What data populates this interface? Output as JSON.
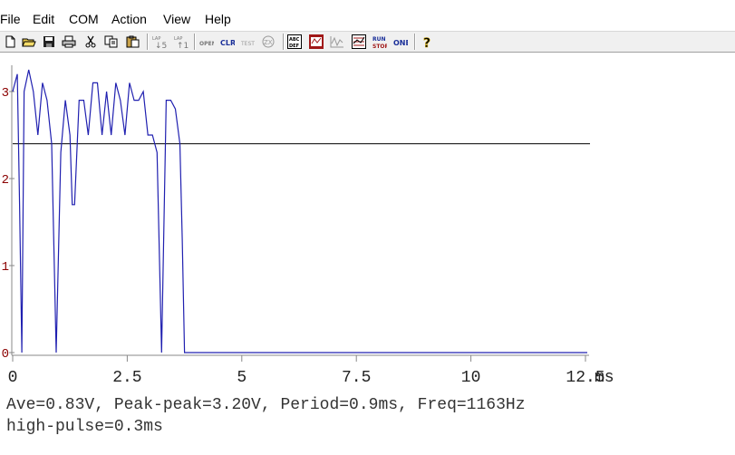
{
  "menu": [
    "File",
    "Edit",
    "COM",
    "Action",
    "View",
    "Help"
  ],
  "toolbar": {
    "buttons": [
      {
        "icon": "new-file-icon"
      },
      {
        "icon": "open-folder-icon"
      },
      {
        "icon": "save-icon"
      },
      {
        "icon": "print-icon"
      },
      {
        "icon": "cut-icon"
      },
      {
        "icon": "copy-icon"
      },
      {
        "icon": "paste-icon"
      },
      {
        "icon": "ch-down-icon",
        "label": "↓5"
      },
      {
        "icon": "ch-up-icon",
        "label": "↑1"
      },
      {
        "icon": "open-icon",
        "label": "OPEN"
      },
      {
        "icon": "clear-icon",
        "label": "CLR"
      },
      {
        "icon": "test-icon",
        "label": "TEST"
      },
      {
        "icon": "zoom-icon",
        "label": "ZX"
      },
      {
        "icon": "abc-def-icon",
        "label": "ABC DEF"
      },
      {
        "icon": "record-icon"
      },
      {
        "icon": "waveform-icon"
      },
      {
        "icon": "grid-icon"
      },
      {
        "icon": "run-stop-icon",
        "label": "RUN STOP"
      },
      {
        "icon": "one-icon",
        "label": "ONE"
      },
      {
        "icon": "help-icon",
        "label": "?"
      }
    ]
  },
  "chart_data": {
    "type": "line",
    "x_unit": "ms",
    "xlim": [
      0,
      12.7
    ],
    "ylim": [
      0,
      3.3
    ],
    "x_ticks": [
      "0",
      "2.5",
      "5",
      "7.5",
      "10",
      "12.5"
    ],
    "y_ticks": [
      "0",
      "1",
      "2",
      "3"
    ],
    "threshold": 2.4,
    "colors": {
      "signal": "#2020b0",
      "threshold": "#000000",
      "axis": "#888888",
      "ytick": "#8b0000"
    },
    "series": [
      {
        "x": [
          0,
          0.1,
          0.15,
          0.2,
          0.25,
          0.35,
          0.45,
          0.55,
          0.65,
          0.75,
          0.85,
          0.95,
          1.05,
          1.15,
          1.25,
          1.3,
          1.35,
          1.45,
          1.55,
          1.65,
          1.75,
          1.85,
          1.95,
          2.05,
          2.15,
          2.25,
          2.35,
          2.45,
          2.55,
          2.65,
          2.75,
          2.85,
          2.95,
          3.05,
          3.15,
          3.25,
          3.35,
          3.45,
          3.55,
          3.65,
          3.7,
          3.75,
          3.8,
          3.85,
          3.95,
          4.05,
          4.1,
          4.2,
          12.7
        ],
        "y": [
          3.0,
          3.2,
          1.7,
          0.0,
          3.0,
          3.25,
          3.0,
          2.5,
          3.1,
          2.9,
          2.4,
          0.0,
          2.3,
          2.9,
          2.5,
          1.7,
          1.7,
          2.9,
          2.9,
          2.5,
          3.1,
          3.1,
          2.5,
          3.0,
          2.5,
          3.1,
          2.9,
          2.5,
          3.1,
          2.9,
          2.9,
          3.0,
          2.5,
          2.5,
          2.3,
          0.0,
          2.9,
          2.9,
          2.8,
          2.4,
          1.3,
          0.0,
          0.0,
          0.0,
          0.0,
          0.0,
          0.0,
          0.0,
          0.0
        ]
      }
    ]
  },
  "stats": {
    "line1": "Ave=0.83V, Peak-peak=3.20V, Period=0.9ms, Freq=1163Hz",
    "line2": "high-pulse=0.3ms"
  }
}
